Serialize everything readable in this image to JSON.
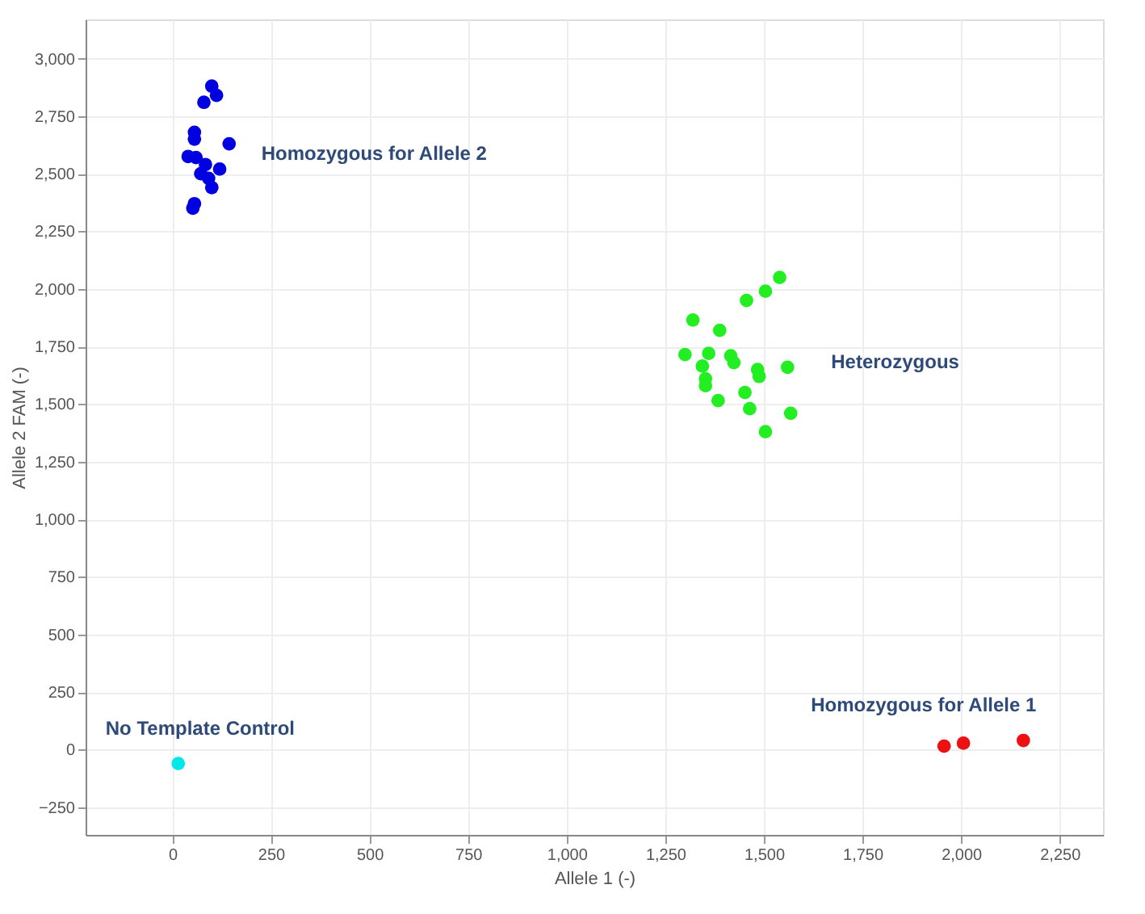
{
  "chart_data": {
    "type": "scatter",
    "xlabel": "Allele 1 (-)",
    "ylabel": "Allele 2 FAM (-)",
    "xlim": [
      -220,
      2360
    ],
    "ylim": [
      -370,
      3170
    ],
    "xticks": [
      0,
      250,
      500,
      750,
      {
        "value": 1000,
        "label": "1,000"
      },
      {
        "value": 1250,
        "label": "1,250"
      },
      {
        "value": 1500,
        "label": "1,500"
      },
      {
        "value": 1750,
        "label": "1,750"
      },
      {
        "value": 2000,
        "label": "2,000"
      },
      {
        "value": 2250,
        "label": "2,250"
      }
    ],
    "yticks": [
      -250,
      0,
      250,
      500,
      750,
      {
        "value": 1000,
        "label": "1,000"
      },
      {
        "value": 1250,
        "label": "1,250"
      },
      {
        "value": 1500,
        "label": "1,500"
      },
      {
        "value": 1750,
        "label": "1,750"
      },
      {
        "value": 2000,
        "label": "2,000"
      },
      {
        "value": 2250,
        "label": "2,250"
      },
      {
        "value": 2500,
        "label": "2,500"
      },
      {
        "value": 2750,
        "label": "2,750"
      },
      {
        "value": 3000,
        "label": "3,000"
      }
    ],
    "grid": true,
    "marker": "circle",
    "series": [
      {
        "color": "#0000e0",
        "x": [
          100,
          112,
          80,
          56,
          56,
          144,
          40,
          60,
          84,
          120,
          72,
          92,
          100,
          56,
          52
        ],
        "values": [
          2880,
          2840,
          2810,
          2680,
          2650,
          2630,
          2575,
          2570,
          2540,
          2520,
          2500,
          2480,
          2440,
          2370,
          2350
        ]
      },
      {
        "color": "#22ee22",
        "x": [
          1540,
          1504,
          1456,
          1320,
          1388,
          1300,
          1360,
          1416,
          1424,
          1560,
          1344,
          1484,
          1488,
          1352,
          1352,
          1452,
          1384,
          1464,
          1568,
          1504
        ],
        "values": [
          2050,
          1990,
          1950,
          1865,
          1820,
          1715,
          1720,
          1710,
          1680,
          1660,
          1665,
          1650,
          1620,
          1610,
          1580,
          1550,
          1515,
          1480,
          1460,
          1380
        ]
      },
      {
        "color": "#ee1111",
        "x": [
          1957,
          2006,
          2158
        ],
        "values": [
          15,
          28,
          40
        ]
      },
      {
        "color": "#00e8e8",
        "x": [
          15
        ],
        "values": [
          -60
        ]
      }
    ],
    "annotations": [
      "Homozygous for Allele 2",
      "Heterozygous",
      "Homozygous for Allele 1",
      "No Template Control"
    ]
  }
}
